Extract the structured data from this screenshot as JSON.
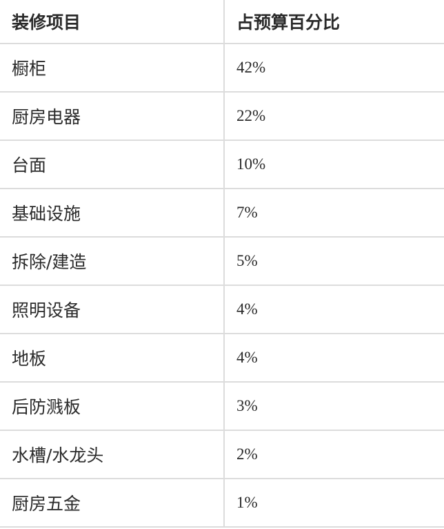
{
  "table": {
    "headers": [
      "装修项目",
      "占预算百分比"
    ],
    "rows": [
      [
        "橱柜",
        "42%"
      ],
      [
        "厨房电器",
        "22%"
      ],
      [
        "台面",
        "10%"
      ],
      [
        "基础设施",
        "7%"
      ],
      [
        "拆除/建造",
        "5%"
      ],
      [
        "照明设备",
        "4%"
      ],
      [
        "地板",
        "4%"
      ],
      [
        "后防溅板",
        "3%"
      ],
      [
        "水槽/水龙头",
        "2%"
      ],
      [
        "厨房五金",
        "1%"
      ]
    ]
  }
}
